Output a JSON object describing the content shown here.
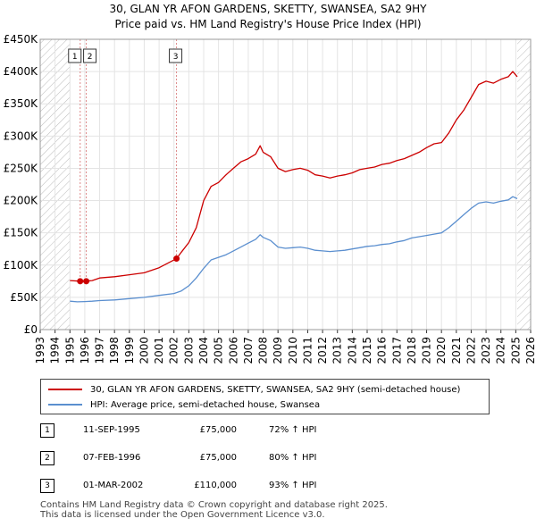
{
  "header": {
    "title_line1": "30, GLAN YR AFON GARDENS, SKETTY, SWANSEA, SA2 9HY",
    "title_line2": "Price paid vs. HM Land Registry's House Price Index (HPI)"
  },
  "colors": {
    "property": "#cc0000",
    "hpi": "#5b8fcf",
    "hatch": "#bbbbbb",
    "vline": "#dd8888"
  },
  "chart_data": {
    "type": "line",
    "title": "30, GLAN YR AFON GARDENS, SKETTY, SWANSEA, SA2 9HY — Price paid vs. HM Land Registry's House Price Index (HPI)",
    "xlim": [
      1993,
      2026
    ],
    "ylim": [
      0,
      450000
    ],
    "x_ticks": [
      "1993",
      "1994",
      "1995",
      "1996",
      "1997",
      "1998",
      "1999",
      "2000",
      "2001",
      "2002",
      "2003",
      "2004",
      "2005",
      "2006",
      "2007",
      "2008",
      "2009",
      "2010",
      "2011",
      "2012",
      "2013",
      "2014",
      "2015",
      "2016",
      "2017",
      "2018",
      "2019",
      "2020",
      "2021",
      "2022",
      "2023",
      "2024",
      "2025",
      "2026"
    ],
    "y_ticks": [
      {
        "value": 0,
        "label": "£0"
      },
      {
        "value": 50000,
        "label": "£50K"
      },
      {
        "value": 100000,
        "label": "£100K"
      },
      {
        "value": 150000,
        "label": "£150K"
      },
      {
        "value": 200000,
        "label": "£200K"
      },
      {
        "value": 250000,
        "label": "£250K"
      },
      {
        "value": 300000,
        "label": "£300K"
      },
      {
        "value": 350000,
        "label": "£350K"
      },
      {
        "value": 400000,
        "label": "£400K"
      },
      {
        "value": 450000,
        "label": "£450K"
      }
    ],
    "grid": true,
    "hatched_ranges": [
      [
        1993,
        1995
      ],
      [
        2025.1,
        2026
      ]
    ],
    "series": [
      {
        "name": "30, GLAN YR AFON GARDENS, SKETTY, SWANSEA, SA2 9HY (semi-detached house)",
        "points": [
          [
            1995.0,
            76000
          ],
          [
            1995.7,
            75000
          ],
          [
            1996.1,
            75000
          ],
          [
            1996.5,
            76000
          ],
          [
            1997.0,
            80000
          ],
          [
            1998.0,
            82000
          ],
          [
            1999.0,
            85000
          ],
          [
            2000.0,
            88000
          ],
          [
            2001.0,
            96000
          ],
          [
            2002.17,
            110000
          ],
          [
            2002.5,
            120000
          ],
          [
            2003.0,
            135000
          ],
          [
            2003.5,
            158000
          ],
          [
            2004.0,
            200000
          ],
          [
            2004.5,
            222000
          ],
          [
            2005.0,
            228000
          ],
          [
            2005.5,
            240000
          ],
          [
            2006.0,
            250000
          ],
          [
            2006.5,
            260000
          ],
          [
            2007.0,
            265000
          ],
          [
            2007.5,
            272000
          ],
          [
            2007.8,
            285000
          ],
          [
            2008.0,
            275000
          ],
          [
            2008.5,
            268000
          ],
          [
            2009.0,
            250000
          ],
          [
            2009.5,
            245000
          ],
          [
            2010.0,
            248000
          ],
          [
            2010.5,
            250000
          ],
          [
            2011.0,
            247000
          ],
          [
            2011.5,
            240000
          ],
          [
            2012.0,
            238000
          ],
          [
            2012.5,
            235000
          ],
          [
            2013.0,
            238000
          ],
          [
            2013.5,
            240000
          ],
          [
            2014.0,
            243000
          ],
          [
            2014.5,
            248000
          ],
          [
            2015.0,
            250000
          ],
          [
            2015.5,
            252000
          ],
          [
            2016.0,
            256000
          ],
          [
            2016.5,
            258000
          ],
          [
            2017.0,
            262000
          ],
          [
            2017.5,
            265000
          ],
          [
            2018.0,
            270000
          ],
          [
            2018.5,
            275000
          ],
          [
            2019.0,
            282000
          ],
          [
            2019.5,
            288000
          ],
          [
            2020.0,
            290000
          ],
          [
            2020.5,
            305000
          ],
          [
            2021.0,
            325000
          ],
          [
            2021.5,
            340000
          ],
          [
            2022.0,
            360000
          ],
          [
            2022.5,
            380000
          ],
          [
            2023.0,
            385000
          ],
          [
            2023.5,
            382000
          ],
          [
            2024.0,
            388000
          ],
          [
            2024.5,
            392000
          ],
          [
            2024.8,
            400000
          ],
          [
            2025.1,
            392000
          ]
        ]
      },
      {
        "name": "HPI: Average price, semi-detached house, Swansea",
        "points": [
          [
            1995.0,
            44000
          ],
          [
            1995.5,
            43000
          ],
          [
            1996.0,
            43500
          ],
          [
            1996.5,
            44000
          ],
          [
            1997.0,
            45000
          ],
          [
            1998.0,
            46000
          ],
          [
            1999.0,
            48000
          ],
          [
            2000.0,
            50000
          ],
          [
            2001.0,
            53000
          ],
          [
            2002.0,
            56000
          ],
          [
            2002.5,
            60000
          ],
          [
            2003.0,
            68000
          ],
          [
            2003.5,
            80000
          ],
          [
            2004.0,
            95000
          ],
          [
            2004.5,
            108000
          ],
          [
            2005.0,
            112000
          ],
          [
            2005.5,
            116000
          ],
          [
            2006.0,
            122000
          ],
          [
            2006.5,
            128000
          ],
          [
            2007.0,
            134000
          ],
          [
            2007.5,
            140000
          ],
          [
            2007.8,
            147000
          ],
          [
            2008.0,
            143000
          ],
          [
            2008.5,
            138000
          ],
          [
            2009.0,
            128000
          ],
          [
            2009.5,
            126000
          ],
          [
            2010.0,
            127000
          ],
          [
            2010.5,
            128000
          ],
          [
            2011.0,
            126000
          ],
          [
            2011.5,
            123000
          ],
          [
            2012.0,
            122000
          ],
          [
            2012.5,
            121000
          ],
          [
            2013.0,
            122000
          ],
          [
            2013.5,
            123000
          ],
          [
            2014.0,
            125000
          ],
          [
            2014.5,
            127000
          ],
          [
            2015.0,
            129000
          ],
          [
            2015.5,
            130000
          ],
          [
            2016.0,
            132000
          ],
          [
            2016.5,
            133000
          ],
          [
            2017.0,
            136000
          ],
          [
            2017.5,
            138000
          ],
          [
            2018.0,
            142000
          ],
          [
            2018.5,
            144000
          ],
          [
            2019.0,
            146000
          ],
          [
            2019.5,
            148000
          ],
          [
            2020.0,
            150000
          ],
          [
            2020.5,
            158000
          ],
          [
            2021.0,
            168000
          ],
          [
            2021.5,
            178000
          ],
          [
            2022.0,
            188000
          ],
          [
            2022.5,
            196000
          ],
          [
            2023.0,
            198000
          ],
          [
            2023.5,
            196000
          ],
          [
            2024.0,
            199000
          ],
          [
            2024.5,
            201000
          ],
          [
            2024.8,
            206000
          ],
          [
            2025.1,
            203000
          ]
        ]
      }
    ],
    "sales": [
      {
        "id": "1",
        "x": 1995.69,
        "y": 75000
      },
      {
        "id": "2",
        "x": 1996.1,
        "y": 75000
      },
      {
        "id": "3",
        "x": 2002.17,
        "y": 110000
      }
    ]
  },
  "legend": {
    "property_label": "30, GLAN YR AFON GARDENS, SKETTY, SWANSEA, SA2 9HY (semi-detached house)",
    "hpi_label": "HPI: Average price, semi-detached house, Swansea"
  },
  "sales_table": [
    {
      "num": "1",
      "date": "11-SEP-1995",
      "price": "£75,000",
      "hpi": "72% ↑ HPI"
    },
    {
      "num": "2",
      "date": "07-FEB-1996",
      "price": "£75,000",
      "hpi": "80% ↑ HPI"
    },
    {
      "num": "3",
      "date": "01-MAR-2002",
      "price": "£110,000",
      "hpi": "93% ↑ HPI"
    }
  ],
  "footer": {
    "line1": "Contains HM Land Registry data © Crown copyright and database right 2025.",
    "line2": "This data is licensed under the Open Government Licence v3.0."
  }
}
